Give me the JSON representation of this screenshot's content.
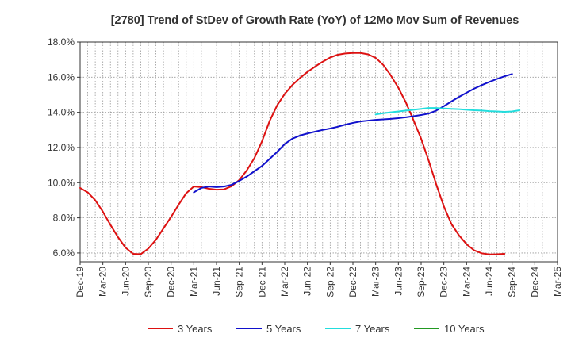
{
  "chart_data": {
    "type": "line",
    "title": "[2780]  Trend of StDev of Growth Rate (YoY) of 12Mo Mov Sum of Revenues",
    "xlabel": "",
    "ylabel": "",
    "ylim": [
      5.5,
      18.0
    ],
    "yticks": [
      6.0,
      8.0,
      10.0,
      12.0,
      14.0,
      16.0,
      18.0
    ],
    "ytick_labels": [
      "6.0%",
      "8.0%",
      "10.0%",
      "12.0%",
      "14.0%",
      "16.0%",
      "18.0%"
    ],
    "x_count": 64,
    "xtick_labels": [
      "Dec-19",
      "Mar-20",
      "Jun-20",
      "Sep-20",
      "Dec-20",
      "Mar-21",
      "Jun-21",
      "Sep-21",
      "Dec-21",
      "Mar-22",
      "Jun-22",
      "Sep-22",
      "Dec-22",
      "Mar-23",
      "Jun-23",
      "Sep-23",
      "Dec-23",
      "Mar-24",
      "Jun-24",
      "Sep-24",
      "Dec-24",
      "Mar-25"
    ],
    "grid": true,
    "legend_position": "bottom",
    "series": [
      {
        "name": "3 Years",
        "color": "#dd1111",
        "start_index": 0,
        "values": [
          9.7,
          9.45,
          9.0,
          8.35,
          7.6,
          6.9,
          6.3,
          5.95,
          5.93,
          6.25,
          6.75,
          7.4,
          8.05,
          8.75,
          9.4,
          9.78,
          9.75,
          9.65,
          9.6,
          9.62,
          9.8,
          10.15,
          10.7,
          11.4,
          12.35,
          13.5,
          14.4,
          15.05,
          15.55,
          15.95,
          16.3,
          16.6,
          16.88,
          17.12,
          17.28,
          17.35,
          17.38,
          17.38,
          17.3,
          17.1,
          16.7,
          16.1,
          15.4,
          14.55,
          13.55,
          12.5,
          11.25,
          9.9,
          8.65,
          7.65,
          7.0,
          6.5,
          6.15,
          5.98,
          5.92,
          5.93,
          5.95
        ]
      },
      {
        "name": "5 Years",
        "color": "#1111cc",
        "start_index": 15,
        "values": [
          9.45,
          9.7,
          9.78,
          9.75,
          9.78,
          9.88,
          10.1,
          10.35,
          10.65,
          10.95,
          11.35,
          11.75,
          12.2,
          12.5,
          12.68,
          12.8,
          12.9,
          13.0,
          13.08,
          13.18,
          13.3,
          13.4,
          13.48,
          13.53,
          13.57,
          13.6,
          13.63,
          13.67,
          13.72,
          13.78,
          13.85,
          13.93,
          14.1,
          14.35,
          14.62,
          14.88,
          15.12,
          15.35,
          15.55,
          15.73,
          15.9,
          16.05,
          16.18
        ]
      },
      {
        "name": "7 Years",
        "color": "#22dddd",
        "start_index": 39,
        "values": [
          13.88,
          13.95,
          14.0,
          14.05,
          14.1,
          14.15,
          14.2,
          14.25,
          14.25,
          14.22,
          14.2,
          14.18,
          14.15,
          14.12,
          14.1,
          14.07,
          14.05,
          14.03,
          14.05,
          14.12
        ]
      },
      {
        "name": "10 Years",
        "color": "#229922",
        "start_index": 0,
        "values": []
      }
    ]
  }
}
